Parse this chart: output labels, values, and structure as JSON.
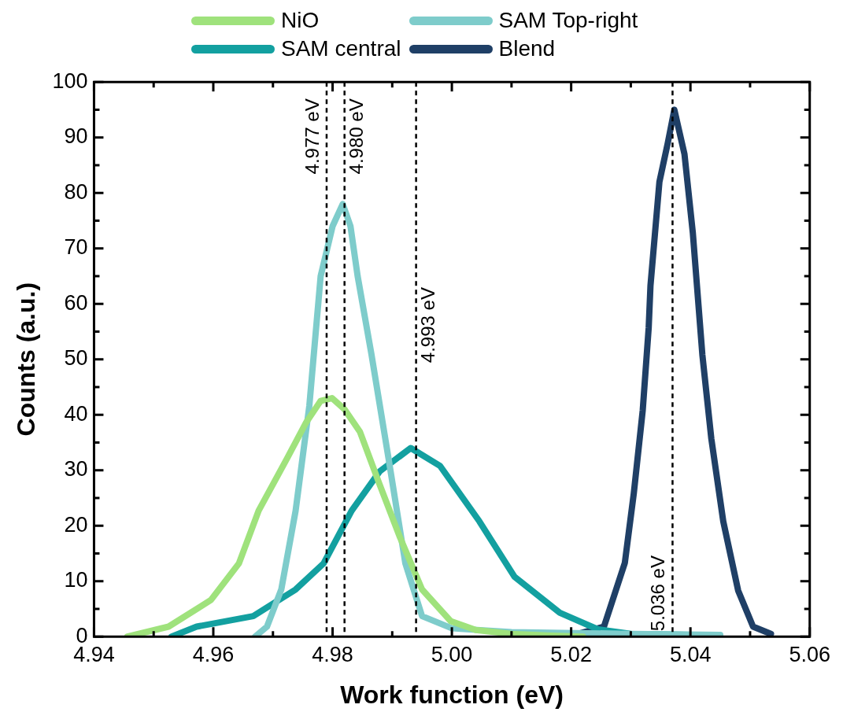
{
  "chart_data": {
    "type": "line",
    "xlabel": "Work function (eV)",
    "ylabel": "Counts (a.u.)",
    "xlim": [
      4.94,
      5.06
    ],
    "xticks": [
      {
        "value": 4.94,
        "label": "4.94"
      },
      {
        "value": 4.96,
        "label": "4.96"
      },
      {
        "value": 4.98,
        "label": "4.98"
      },
      {
        "value": 5.0,
        "label": "5.00"
      },
      {
        "value": 5.02,
        "label": "5.02"
      },
      {
        "value": 5.04,
        "label": "5.04"
      },
      {
        "value": 5.06,
        "label": "5.06"
      }
    ],
    "ylim": [
      0,
      100
    ],
    "yticks": [
      0,
      10,
      20,
      30,
      40,
      50,
      60,
      70,
      80,
      90,
      100
    ],
    "grid": false,
    "legend": "top",
    "marker": "none",
    "line_style": "solid",
    "series": [
      {
        "name": "NiO",
        "color": "#9fe27c",
        "x": [
          4.9456,
          4.9525,
          4.9596,
          4.9643,
          4.9676,
          4.9723,
          4.9755,
          4.978,
          4.9799,
          4.982,
          4.9846,
          4.9879,
          4.9913,
          4.995,
          4.9998,
          5.004,
          5.01,
          5.016,
          5.022
        ],
        "values": [
          0,
          1.8,
          6.6,
          13.2,
          22.7,
          32,
          38.5,
          42.5,
          43,
          41,
          36.9,
          27.4,
          17.9,
          8.5,
          2.8,
          1.2,
          0.5,
          0.2,
          0
        ]
      },
      {
        "name": "SAM Top-right",
        "color": "#7ecccb",
        "x": [
          4.967,
          4.969,
          4.9714,
          4.9738,
          4.9761,
          4.978,
          4.98,
          4.9817,
          4.983,
          4.9842,
          4.9865,
          4.9894,
          4.9922,
          4.995,
          5.0,
          5.01,
          5.03,
          5.045
        ],
        "values": [
          0,
          1.8,
          8.5,
          22.7,
          41.6,
          65,
          74,
          78,
          74,
          65,
          51,
          32,
          13.2,
          3.7,
          1.5,
          0.8,
          0.5,
          0.3
        ]
      },
      {
        "name": "SAM central",
        "color": "#13a0a0",
        "x": [
          4.953,
          4.9572,
          4.9667,
          4.9738,
          4.9785,
          4.9832,
          4.9879,
          4.9931,
          4.998,
          5.0046,
          5.0105,
          5.0181,
          5.0245,
          5.03,
          5.04
        ],
        "values": [
          0,
          1.8,
          3.7,
          8.5,
          13.2,
          22.7,
          29.8,
          34,
          30.8,
          20.8,
          10.8,
          4.3,
          1.3,
          0.5,
          0.3
        ]
      },
      {
        "name": "Blend",
        "color": "#1f3f66",
        "x": [
          5.0205,
          5.0255,
          5.029,
          5.0305,
          5.032,
          5.033,
          5.0333,
          5.0348,
          5.0362,
          5.0373,
          5.039,
          5.0404,
          5.042,
          5.0435,
          5.0455,
          5.048,
          5.0505,
          5.0535
        ],
        "values": [
          0.3,
          1.8,
          13.3,
          25.8,
          40.8,
          55.7,
          63.3,
          82,
          89,
          95,
          87,
          72.8,
          50.8,
          35.7,
          20.8,
          8.3,
          1.8,
          0.5
        ]
      }
    ],
    "ref_lines": [
      {
        "axis": "x",
        "value": 4.979,
        "label": "4.977 eV",
        "color": "#000000",
        "line_style": "dashed"
      },
      {
        "axis": "x",
        "value": 4.982,
        "label": "4.980 eV",
        "color": "#000000",
        "line_style": "dashed"
      },
      {
        "axis": "x",
        "value": 4.994,
        "label": "4.993 eV",
        "color": "#000000",
        "line_style": "dashed"
      },
      {
        "axis": "x",
        "value": 5.037,
        "label": "5.036 eV",
        "color": "#000000",
        "line_style": "dashed"
      }
    ]
  }
}
